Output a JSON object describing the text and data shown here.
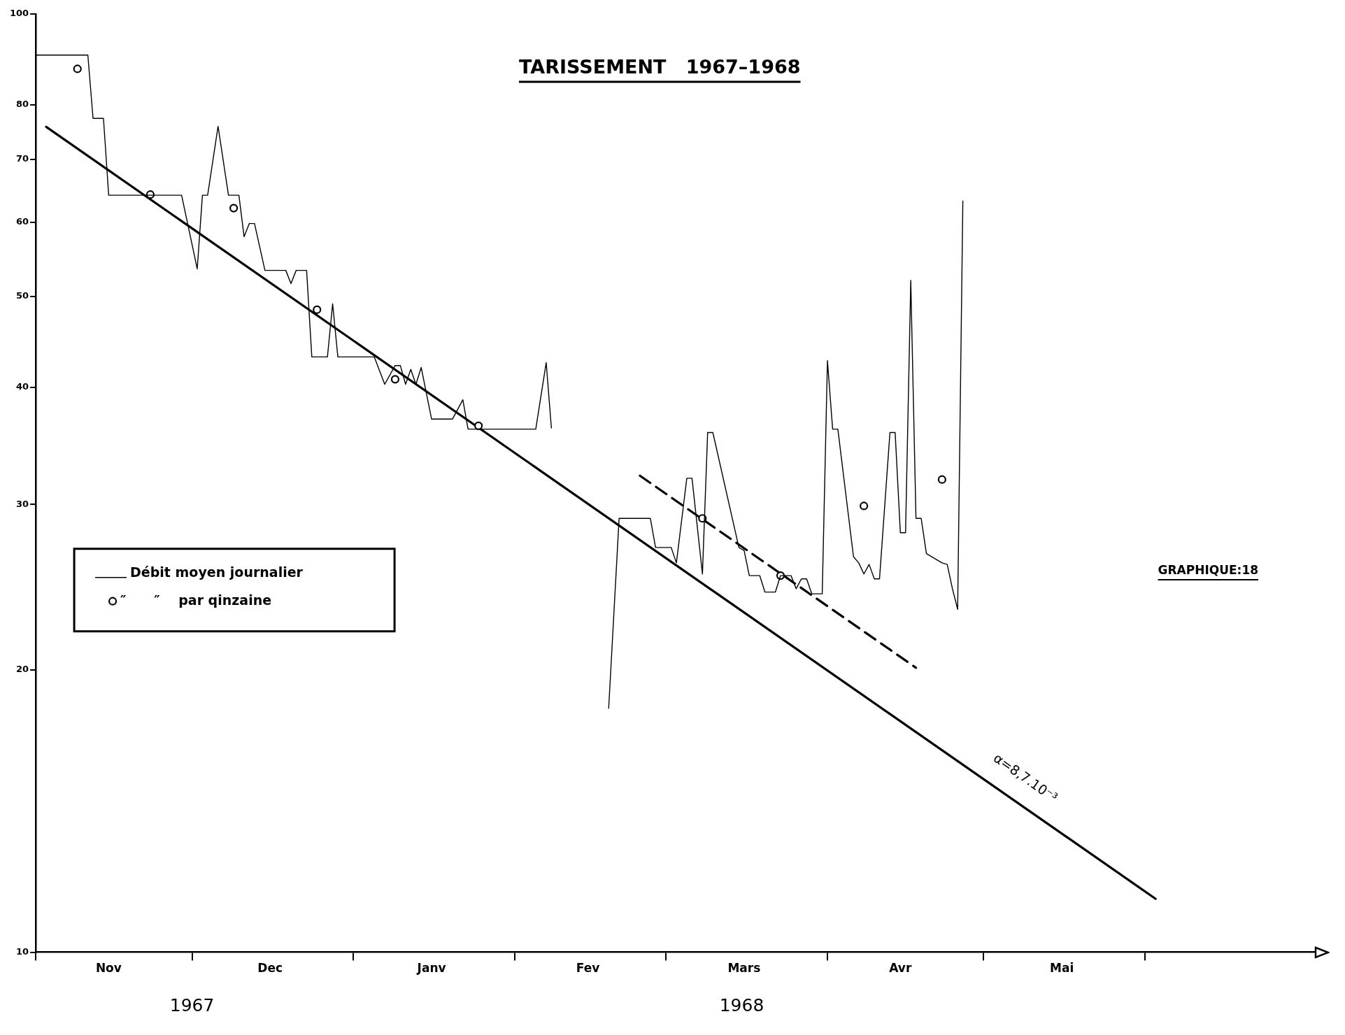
{
  "chart_data": {
    "type": "line",
    "title": "TARISSEMENT   1967–1968",
    "xlim": [
      "1967-11-01",
      "1968-07-04"
    ],
    "xticks": [
      {
        "value": "1967-11-01",
        "label": null
      },
      {
        "value": "1967-11-15",
        "label": "Nov"
      },
      {
        "value": "1967-12-01",
        "label": null
      },
      {
        "value": "1967-12-16",
        "label": "Dec"
      },
      {
        "value": "1968-01-01",
        "label": null
      },
      {
        "value": "1968-01-16",
        "label": "Janv"
      },
      {
        "value": "1968-02-01",
        "label": null
      },
      {
        "value": "1968-02-15",
        "label": "Fev"
      },
      {
        "value": "1968-03-01",
        "label": null
      },
      {
        "value": "1968-03-16",
        "label": "Mars"
      },
      {
        "value": "1968-04-01",
        "label": null
      },
      {
        "value": "1968-04-15",
        "label": "Avr"
      },
      {
        "value": "1968-05-01",
        "label": null
      },
      {
        "value": "1968-05-16",
        "label": "Mai"
      },
      {
        "value": "1968-06-01",
        "label": null
      }
    ],
    "ylim": [
      10,
      100
    ],
    "yticks": [
      10,
      20,
      30,
      40,
      50,
      60,
      70,
      80,
      100
    ],
    "log": "y",
    "grid": false,
    "legend": "left",
    "annotations": [
      "1967",
      "1968",
      "GRAPHIQUE:18",
      "α=8,7.10⁻³"
    ],
    "series": [
      {
        "name": "Débit moyen journalier",
        "type": "line",
        "marker": "none",
        "color": "#000000",
        "x": [
          "1967-11-01",
          "1967-11-11",
          "1967-11-12",
          "1967-11-14",
          "1967-11-15",
          "1967-11-29",
          "1967-12-02",
          "1967-12-03",
          "1967-12-04",
          "1967-12-06",
          "1967-12-08",
          "1967-12-10",
          "1967-12-11",
          "1967-12-12",
          "1967-12-13",
          "1967-12-15",
          "1967-12-19",
          "1967-12-20",
          "1967-12-21",
          "1967-12-23",
          "1967-12-24",
          "1967-12-27",
          "1967-12-28",
          "1967-12-29",
          "1968-01-05",
          "1968-01-07",
          "1968-01-09",
          "1968-01-10",
          "1968-01-11",
          "1968-01-12",
          "1968-01-13",
          "1968-01-14",
          "1968-01-16",
          "1968-01-20",
          "1968-01-22",
          "1968-01-23",
          "1968-02-05",
          "1968-02-07",
          "1968-02-08",
          "1968-02-12",
          "1968-02-19",
          "1968-02-21",
          "1968-02-27",
          "1968-02-28",
          "1968-03-02",
          "1968-03-03",
          "1968-03-05",
          "1968-03-06",
          "1968-03-08",
          "1968-03-09",
          "1968-03-10",
          "1968-03-15",
          "1968-03-16",
          "1968-03-17",
          "1968-03-19",
          "1968-03-20",
          "1968-03-22",
          "1968-03-23",
          "1968-03-25",
          "1968-03-26",
          "1968-03-27",
          "1968-03-28",
          "1968-03-29",
          "1968-03-31",
          "1968-04-01",
          "1968-04-02",
          "1968-04-03",
          "1968-04-06",
          "1968-04-07",
          "1968-04-08",
          "1968-04-09",
          "1968-04-10",
          "1968-04-11",
          "1968-04-13",
          "1968-04-14",
          "1968-04-15",
          "1968-04-16",
          "1968-04-17",
          "1968-04-18",
          "1968-04-19",
          "1968-04-20",
          "1968-04-23",
          "1968-04-24",
          "1968-04-25",
          "1968-04-26",
          "1968-04-27"
        ],
        "values": [
          90.4,
          90.4,
          77.4,
          77.4,
          64.1,
          64.1,
          53.5,
          64.1,
          64.1,
          75.9,
          64.1,
          64.1,
          57.9,
          59.8,
          59.8,
          53.3,
          53.3,
          51.6,
          53.3,
          53.3,
          43.1,
          43.1,
          49.1,
          43.1,
          43.1,
          40.3,
          42.2,
          42.2,
          40.3,
          41.8,
          40.3,
          42.0,
          37.0,
          37.0,
          38.8,
          36.1,
          36.1,
          42.5,
          36.2,
          null,
          18.2,
          29.0,
          29.0,
          27.0,
          27.0,
          26.0,
          32.0,
          32.0,
          25.3,
          35.8,
          35.8,
          27.0,
          26.8,
          25.2,
          25.2,
          24.2,
          24.2,
          25.2,
          25.2,
          24.4,
          25.0,
          25.0,
          24.1,
          24.1,
          42.7,
          36.1,
          36.1,
          26.4,
          26.0,
          25.3,
          25.9,
          25.0,
          25.0,
          35.8,
          35.8,
          28.0,
          28.0,
          52.0,
          29.0,
          29.0,
          26.6,
          26.0,
          25.9,
          24.4,
          23.2,
          63.2
        ]
      },
      {
        "name": "″      ″    par qinzaine",
        "type": "scatter",
        "marker": "circle",
        "color": "#000000",
        "x": [
          "1967-11-09",
          "1967-11-23",
          "1967-12-09",
          "1967-12-25",
          "1968-01-09",
          "1968-01-25",
          "1968-03-08",
          "1968-03-23",
          "1968-04-08",
          "1968-04-23"
        ],
        "values": [
          87.4,
          64.2,
          62.1,
          48.4,
          40.8,
          36.4,
          29.0,
          25.2,
          29.9,
          31.9
        ]
      },
      {
        "type": "line",
        "marker": "none",
        "color": "#000000",
        "x": [
          "1967-11-03",
          "1968-06-03"
        ],
        "values": [
          75.8,
          11.4
        ]
      },
      {
        "type": "line",
        "marker": "none",
        "line_style": "dashed",
        "color": "#000000",
        "x": [
          "1968-02-25",
          "1968-04-18"
        ],
        "values": [
          32.2,
          20.1
        ]
      }
    ]
  }
}
